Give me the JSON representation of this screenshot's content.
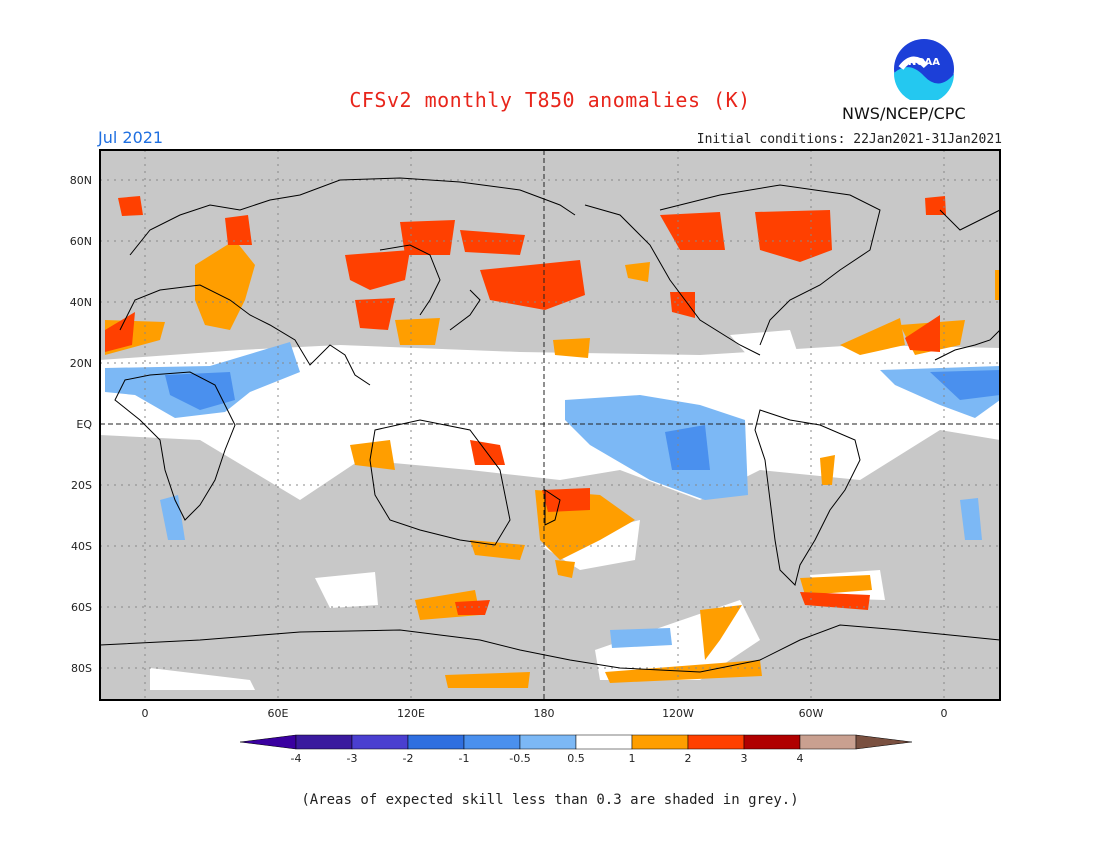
{
  "title": "CFSv2 monthly T850 anomalies (K)",
  "month": "Jul 2021",
  "initial_conditions": "Initial conditions: 22Jan2021-31Jan2021",
  "agency": "NWS/NCEP/CPC",
  "logo_text": "NOAA",
  "footnote": "(Areas of expected skill less than 0.3 are shaded in grey.)",
  "lat_labels": [
    "80N",
    "60N",
    "40N",
    "20N",
    "EQ",
    "20S",
    "40S",
    "60S",
    "80S"
  ],
  "lon_labels": [
    "0",
    "60E",
    "120E",
    "180",
    "120W",
    "60W",
    "0"
  ],
  "colorbar": {
    "tick_labels": [
      "-4",
      "-3",
      "-2",
      "-1",
      "-0.5",
      "0.5",
      "1",
      "2",
      "3",
      "4"
    ],
    "colors": [
      "#3a1a9e",
      "#4a3fd0",
      "#2f6fe0",
      "#4a90ee",
      "#7cb8f5",
      "#ffffff",
      "#ff9e00",
      "#ff4000",
      "#b00000",
      "#c9a090"
    ],
    "low_arrow_color": "#3a00a0",
    "high_arrow_color": "#7a5040"
  },
  "colors": {
    "skill_mask_grey": "#c8c8c8",
    "title_red": "#e8251b",
    "date_blue": "#1f6fe0"
  }
}
